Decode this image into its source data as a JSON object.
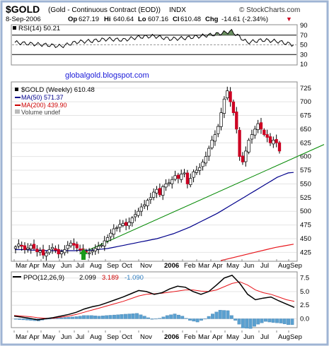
{
  "header": {
    "symbol": "$GOLD",
    "name": "(Gold - Continuous Contract (EOD))",
    "exchange": "INDX",
    "brand": "© StockCharts.com",
    "date": "8-Sep-2006",
    "open_label": "Op",
    "open": "627.19",
    "high_label": "Hi",
    "high": "640.64",
    "low_label": "Lo",
    "low": "607.16",
    "close_label": "Cl",
    "close": "610.48",
    "change_label": "Chg",
    "change": "-14.61 (-2.34%)",
    "change_arrow": "▼"
  },
  "rsi": {
    "label": "RSI(14) 50.21",
    "ticks": [
      "90",
      "70",
      "50",
      "30",
      "10"
    ]
  },
  "price_panel": {
    "watermark": "globalgold.blogspot.com",
    "legend": [
      {
        "text": "$GOLD (Weekly) 610.48",
        "color": "#000000"
      },
      {
        "text": "MA(50) 571.37",
        "color": "#00008b"
      },
      {
        "text": "MA(200) 439.90",
        "color": "#cc0000"
      },
      {
        "text": "Volume undef",
        "color": "#444444"
      }
    ]
  },
  "x_axis": {
    "labels": [
      "Mar",
      "Apr",
      "May",
      "Jun",
      "Jul",
      "Aug",
      "Sep",
      "Oct",
      "Nov",
      "2006",
      "Feb",
      "Mar",
      "Apr",
      "May",
      "Jun",
      "Jul",
      "Aug",
      "Sep"
    ]
  },
  "ppo": {
    "label_prefix": "PPO(12,26,9)",
    "value1": "2.099",
    "value2": "3.189",
    "value3": "-1.090",
    "ticks": [
      "7.5",
      "5.0",
      "2.5",
      "0.0"
    ]
  },
  "colors": {
    "up": "#ffffff",
    "down": "#cc0022",
    "ma50": "#00008b",
    "ma200": "#e8151b",
    "trend": "#008800",
    "hist": "#5aa0d0",
    "signal": "#e8151b",
    "frame_bg": "#ffffff"
  },
  "chart_data": [
    {
      "type": "line",
      "title": "RSI(14) 50.21",
      "ylim": [
        10,
        90
      ],
      "x": [
        "2005-03",
        "2005-04",
        "2005-05",
        "2005-06",
        "2005-07",
        "2005-08",
        "2005-09",
        "2005-10",
        "2005-11",
        "2005-12",
        "2006-01",
        "2006-02",
        "2006-03",
        "2006-04",
        "2006-05",
        "2006-06",
        "2006-07",
        "2006-08",
        "2006-09"
      ],
      "series": [
        {
          "name": "RSI(14)",
          "values": [
            55,
            52,
            50,
            47,
            56,
            58,
            62,
            60,
            66,
            68,
            62,
            64,
            68,
            72,
            78,
            55,
            60,
            57,
            50
          ]
        }
      ]
    },
    {
      "type": "candlestick",
      "title": "$GOLD (Weekly) 610.48",
      "ylim": [
        410,
        735
      ],
      "y_ticks": [
        425,
        450,
        475,
        500,
        525,
        550,
        575,
        600,
        625,
        650,
        675,
        700,
        725
      ],
      "series": [
        {
          "name": "$GOLD (Weekly)",
          "close": [
            435,
            440,
            436,
            430,
            433,
            438,
            432,
            426,
            428,
            420,
            424,
            430,
            434,
            429,
            422,
            426,
            430,
            438,
            442,
            438,
            433,
            431,
            426,
            425,
            424,
            428,
            432,
            436,
            438,
            446,
            452,
            460,
            468,
            470,
            476,
            478,
            474,
            480,
            488,
            494,
            500,
            508,
            512,
            520,
            525,
            535,
            540,
            530,
            545,
            550,
            552,
            558,
            565,
            560,
            568,
            570,
            550,
            560,
            572,
            575,
            580,
            590,
            600,
            615,
            630,
            640,
            655,
            680,
            705,
            720,
            700,
            680,
            650,
            600,
            590,
            610,
            630,
            640,
            650,
            660,
            650,
            640,
            635,
            625,
            630,
            625,
            610
          ]
        },
        {
          "name": "MA(50) 571.37",
          "values": [
            430,
            430,
            430,
            429,
            429,
            429,
            428,
            428,
            428,
            428,
            428,
            428,
            429,
            429,
            429,
            430,
            431,
            432,
            434,
            436,
            438,
            440,
            442,
            444,
            446,
            448,
            450,
            453,
            456,
            459,
            463,
            467,
            471,
            476,
            481,
            486,
            491,
            496,
            502,
            508,
            514,
            520,
            526,
            532,
            538,
            544,
            550,
            556,
            562,
            566,
            570,
            571
          ]
        },
        {
          "name": "MA(200) 439.90",
          "values": [
            410,
            414,
            418,
            422,
            426,
            430,
            434,
            437,
            439.9
          ]
        },
        {
          "name": "trendline",
          "values": [
            425,
            600
          ]
        }
      ]
    },
    {
      "type": "line",
      "title": "PPO(12,26,9) 2.099, 3.189, -1.090",
      "ylim": [
        -1.5,
        8.5
      ],
      "series": [
        {
          "name": "PPO(12,26,9)",
          "values": [
            0.5,
            0.3,
            0.1,
            -0.2,
            0.0,
            0.2,
            0.5,
            0.8,
            1.2,
            1.8,
            2.2,
            2.5,
            3.0,
            3.5,
            4.0,
            4.6,
            5.2,
            5.0,
            4.5,
            4.8,
            5.5,
            6.0,
            5.8,
            5.0,
            4.5,
            5.0,
            6.2,
            7.5,
            8.0,
            6.5,
            4.5,
            3.5,
            3.8,
            4.0,
            3.3,
            2.7,
            2.1
          ]
        },
        {
          "name": "Signal",
          "values": [
            0.6,
            0.5,
            0.4,
            0.2,
            0.1,
            0.1,
            0.3,
            0.5,
            0.8,
            1.2,
            1.6,
            2.0,
            2.4,
            2.8,
            3.2,
            3.7,
            4.2,
            4.5,
            4.6,
            4.7,
            4.9,
            5.1,
            5.3,
            5.3,
            5.1,
            5.0,
            5.3,
            5.9,
            6.5,
            6.8,
            6.2,
            5.3,
            4.8,
            4.5,
            4.0,
            3.5,
            3.2
          ]
        },
        {
          "name": "Histogram",
          "values": [
            -0.1,
            -0.2,
            -0.3,
            -0.4,
            -0.1,
            0.1,
            0.2,
            0.3,
            0.4,
            0.6,
            0.6,
            0.5,
            0.6,
            0.7,
            0.8,
            0.9,
            1.0,
            0.5,
            -0.1,
            0.1,
            0.6,
            0.9,
            0.5,
            -0.3,
            -0.6,
            0.0,
            0.9,
            1.6,
            1.5,
            -0.3,
            -1.7,
            -1.8,
            -1.0,
            -0.5,
            -0.7,
            -0.8,
            -1.1
          ]
        }
      ]
    }
  ]
}
